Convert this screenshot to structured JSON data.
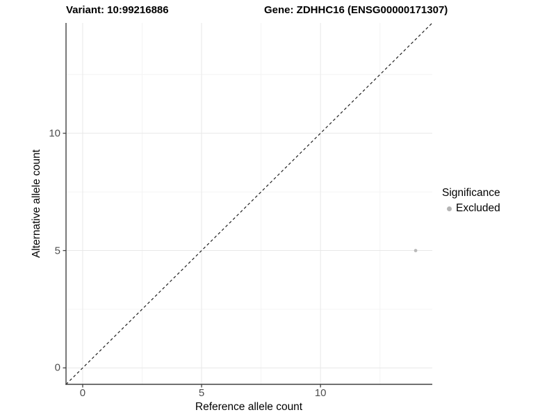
{
  "chart_data": {
    "type": "scatter",
    "title_left": "Variant: 10:99216886",
    "title_right": "Gene: ZDHHC16 (ENSG00000171307)",
    "xlabel": "Reference allele count",
    "ylabel": "Alternative allele count",
    "xlim": [
      -0.7,
      14.7
    ],
    "ylim": [
      -0.7,
      14.7
    ],
    "x_ticks": [
      0,
      5,
      10
    ],
    "y_ticks": [
      0,
      5,
      10
    ],
    "x_minor_gridlines": [
      2.5,
      7.5,
      12.5
    ],
    "y_minor_gridlines": [
      2.5,
      7.5,
      12.5
    ],
    "grid": true,
    "series": [
      {
        "name": "Excluded",
        "color": "#b9b9b9",
        "points": [
          {
            "x": 14,
            "y": 5
          }
        ]
      }
    ],
    "reference_line": {
      "equation": "y = x",
      "style": "dashed",
      "color": "#1f1f1f"
    },
    "legend": {
      "title": "Significance",
      "position": "right",
      "items": [
        {
          "label": "Excluded",
          "color": "#b4b4b4"
        }
      ]
    }
  },
  "colors": {
    "background": "#ffffff",
    "axis_line": "#404040",
    "tick_mark": "#404040",
    "tick_label": "#4d4d4d",
    "grid_major": "#e8e8e8",
    "grid_minor": "#f4f4f4"
  }
}
